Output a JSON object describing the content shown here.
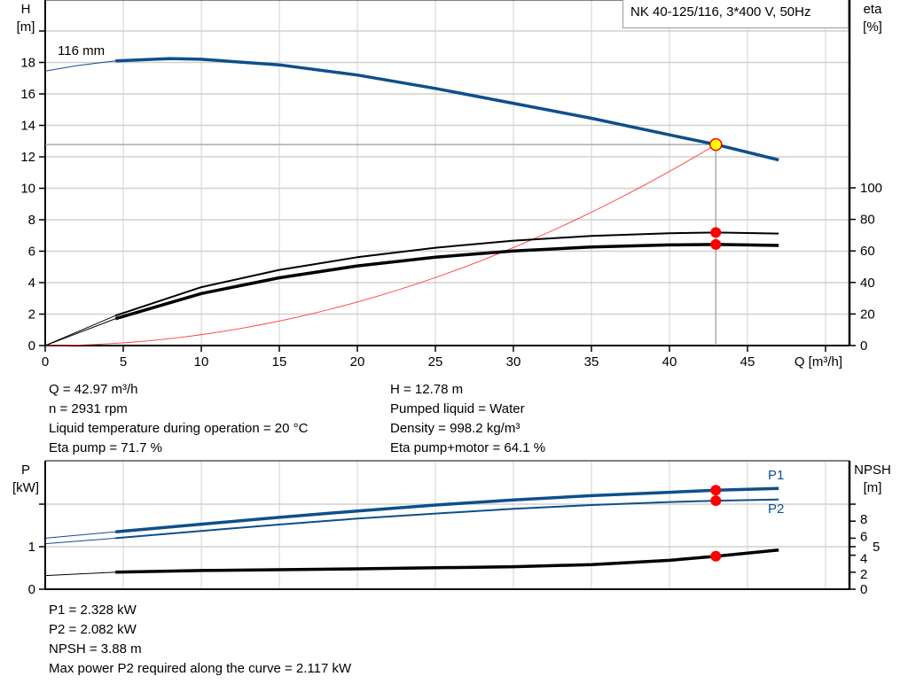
{
  "title": "NK 40-125/116, 3*400 V, 50Hz",
  "colors": {
    "head": "#0d4f8b",
    "power": "#0d4f8b",
    "efficiency": "#000000",
    "system": "#ff3b3b",
    "operating_point": "#ff0000",
    "duty_marker": "#ffff00",
    "grid": "#d0d0d0"
  },
  "chart_data": [
    {
      "type": "line",
      "left_axis": {
        "label_line1": "H",
        "label_line2": "[m]",
        "range": [
          0,
          22
        ],
        "ticks": [
          0,
          2,
          4,
          6,
          8,
          10,
          12,
          14,
          16,
          18,
          20
        ],
        "tick_labels": [
          "0",
          "2",
          "4",
          "6",
          "8",
          "10",
          "12",
          "14",
          "16",
          "18"
        ]
      },
      "right_axis": {
        "label_line1": "eta",
        "label_line2": "[%]",
        "ticks": [
          0,
          20,
          40,
          60,
          80,
          100
        ],
        "tick_labels": [
          "0",
          "20",
          "40",
          "60",
          "80",
          "100"
        ]
      },
      "x_axis": {
        "label": "Q [m³/h]",
        "range": [
          0,
          51
        ],
        "ticks": [
          0,
          5,
          10,
          15,
          20,
          25,
          30,
          35,
          40,
          45,
          50
        ],
        "tick_labels": [
          "0",
          "5",
          "10",
          "15",
          "20",
          "25",
          "30",
          "35",
          "40",
          "45"
        ]
      },
      "grid": true,
      "curve_label": "116 mm",
      "series": [
        {
          "id": "head",
          "axis": "left",
          "thin": {
            "x": [
              0,
              2,
              4.5
            ],
            "y": [
              17.45,
              17.8,
              18.1
            ]
          },
          "x": [
            4.5,
            8,
            10,
            15,
            20,
            25,
            30,
            35,
            40,
            43,
            47
          ],
          "y": [
            18.1,
            18.25,
            18.2,
            17.85,
            17.2,
            16.35,
            15.4,
            14.45,
            13.4,
            12.78,
            11.8
          ]
        },
        {
          "id": "eta_pump",
          "axis": "right",
          "thin": {
            "x": [
              0,
              4.5
            ],
            "y": [
              0,
              19
            ]
          },
          "x": [
            4.5,
            10,
            15,
            20,
            25,
            30,
            35,
            40,
            43,
            47
          ],
          "y": [
            19,
            37,
            48,
            56,
            62,
            66.5,
            69.5,
            71.2,
            71.7,
            71
          ]
        },
        {
          "id": "eta_pump_motor",
          "axis": "right",
          "thin": {
            "x": [
              0,
              4.5
            ],
            "y": [
              0,
              17
            ]
          },
          "x": [
            4.5,
            10,
            15,
            20,
            25,
            30,
            35,
            40,
            43,
            47
          ],
          "y": [
            17,
            33,
            43,
            50.5,
            56,
            60,
            62.5,
            63.8,
            64.1,
            63.5
          ]
        },
        {
          "id": "system_curve",
          "axis": "left",
          "formula_k": 12.78,
          "q_max": 42.97
        }
      ],
      "operating_point": {
        "Q": 42.97,
        "H": 12.78,
        "eta_pump": 71.7,
        "eta_pump_motor": 64.1
      }
    },
    {
      "type": "line",
      "left_axis": {
        "label_line1": "P",
        "label_line2": "[kW]",
        "range": [
          0,
          3
        ],
        "ticks": [
          0,
          1,
          2
        ],
        "tick_labels": [
          "0",
          "1"
        ]
      },
      "right_axis": {
        "label_line1": "NPSH",
        "label_line2": "[m]",
        "ticks": [
          0,
          2,
          4,
          5,
          6,
          8,
          10
        ],
        "tick_labels": [
          "0",
          "2",
          "4",
          "5",
          "6",
          "8"
        ]
      },
      "x_axis": {
        "range": [
          0,
          51
        ],
        "ticks": [
          0,
          5,
          10,
          15,
          20,
          25,
          30,
          35,
          40,
          45,
          50
        ]
      },
      "grid": true,
      "series": [
        {
          "name": "P1",
          "axis": "left",
          "thin": {
            "x": [
              0,
              4.5
            ],
            "y": [
              1.2,
              1.35
            ]
          },
          "x": [
            4.5,
            10,
            15,
            20,
            25,
            30,
            35,
            40,
            43,
            47
          ],
          "y": [
            1.35,
            1.53,
            1.69,
            1.84,
            1.98,
            2.1,
            2.2,
            2.28,
            2.328,
            2.37
          ]
        },
        {
          "name": "P2",
          "axis": "left",
          "thin": {
            "x": [
              0,
              4.5
            ],
            "y": [
              1.07,
              1.2
            ]
          },
          "x": [
            4.5,
            10,
            15,
            20,
            25,
            30,
            35,
            40,
            43,
            47
          ],
          "y": [
            1.2,
            1.37,
            1.52,
            1.66,
            1.78,
            1.89,
            1.98,
            2.05,
            2.082,
            2.11
          ]
        },
        {
          "id": "npsh",
          "axis": "right",
          "thin": {
            "x": [
              0,
              4.5
            ],
            "y": [
              1.6,
              2.0
            ]
          },
          "x": [
            4.5,
            10,
            20,
            30,
            35,
            40,
            43,
            47
          ],
          "y": [
            2.0,
            2.2,
            2.4,
            2.65,
            2.9,
            3.4,
            3.88,
            4.6
          ]
        }
      ],
      "operating_point": {
        "Q": 42.97,
        "P1": 2.328,
        "P2": 2.082,
        "NPSH": 3.88
      }
    }
  ],
  "info_top_left": [
    "Q = 42.97 m³/h",
    "n = 2931 rpm",
    "Liquid temperature during operation = 20 °C",
    "Eta pump = 71.7 %"
  ],
  "info_top_right": [
    "H = 12.78 m",
    "Pumped liquid = Water",
    "Density = 998.2 kg/m³",
    "Eta pump+motor = 64.1 %"
  ],
  "info_bottom": [
    "P1 = 2.328 kW",
    "P2 = 2.082 kW",
    "NPSH = 3.88 m",
    "Max power P2 required along the curve = 2.117 kW"
  ]
}
